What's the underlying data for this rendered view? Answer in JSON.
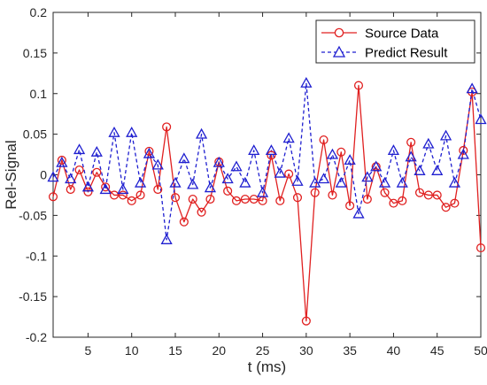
{
  "chart_data": {
    "type": "line",
    "title": "",
    "xlabel": "t (ms)",
    "ylabel": "Rel-Signal",
    "xlim": [
      1,
      50
    ],
    "ylim": [
      -0.2,
      0.2
    ],
    "x_ticks": [
      5,
      10,
      15,
      20,
      25,
      30,
      35,
      40,
      45,
      50
    ],
    "y_ticks": [
      -0.2,
      -0.15,
      -0.1,
      -0.05,
      0,
      0.05,
      0.1,
      0.15,
      0.2
    ],
    "x_tick_labels": [
      "5",
      "10",
      "15",
      "20",
      "25",
      "30",
      "35",
      "40",
      "45",
      "50"
    ],
    "y_tick_labels": [
      "-0.2",
      "-0.15",
      "-0.1",
      "-0.05",
      "0",
      "0.05",
      "0.1",
      "0.15",
      "0.2"
    ],
    "grid": false,
    "legend_position": "top-right",
    "x": [
      1,
      2,
      3,
      4,
      5,
      6,
      7,
      8,
      9,
      10,
      11,
      12,
      13,
      14,
      15,
      16,
      17,
      18,
      19,
      20,
      21,
      22,
      23,
      24,
      25,
      26,
      27,
      28,
      29,
      30,
      31,
      32,
      33,
      34,
      35,
      36,
      37,
      38,
      39,
      40,
      41,
      42,
      43,
      44,
      45,
      46,
      47,
      48,
      49,
      50
    ],
    "series": [
      {
        "name": "Source Data",
        "color": "#e02020",
        "line_style": "solid",
        "marker": "circle",
        "values": [
          -0.027,
          0.018,
          -0.018,
          0.006,
          -0.021,
          0.003,
          -0.015,
          -0.025,
          -0.025,
          -0.032,
          -0.025,
          0.029,
          -0.018,
          0.059,
          -0.028,
          -0.058,
          -0.03,
          -0.046,
          -0.03,
          0.016,
          -0.02,
          -0.032,
          -0.03,
          -0.03,
          -0.032,
          0.024,
          -0.032,
          0.001,
          -0.028,
          -0.18,
          -0.022,
          0.043,
          -0.025,
          0.028,
          -0.038,
          0.11,
          -0.03,
          0.01,
          -0.022,
          -0.035,
          -0.032,
          0.04,
          -0.022,
          -0.025,
          -0.025,
          -0.04,
          -0.035,
          0.03,
          0.102,
          -0.09
        ]
      },
      {
        "name": "Predict Result",
        "color": "#1f1fd0",
        "line_style": "dashed",
        "marker": "triangle",
        "values": [
          -0.003,
          0.015,
          -0.005,
          0.031,
          -0.015,
          0.028,
          -0.018,
          0.052,
          -0.018,
          0.052,
          -0.01,
          0.026,
          0.012,
          -0.08,
          -0.01,
          0.02,
          -0.012,
          0.05,
          -0.016,
          0.015,
          -0.005,
          0.01,
          -0.01,
          0.03,
          -0.022,
          0.03,
          0.002,
          0.045,
          -0.008,
          0.113,
          -0.01,
          -0.005,
          0.025,
          -0.01,
          0.018,
          -0.048,
          -0.003,
          0.01,
          -0.01,
          0.03,
          -0.01,
          0.022,
          0.005,
          0.038,
          0.005,
          0.048,
          -0.01,
          0.025,
          0.106,
          0.068
        ]
      }
    ]
  }
}
